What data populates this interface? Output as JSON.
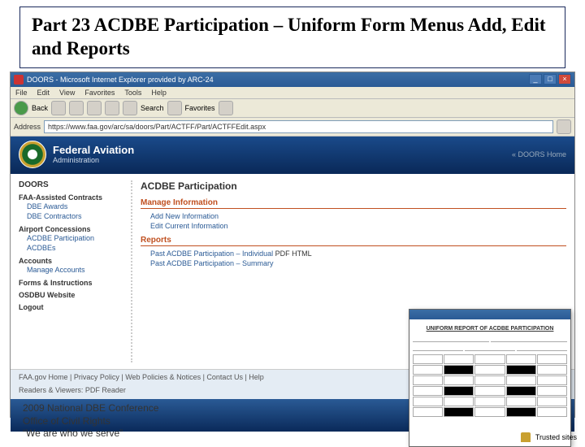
{
  "slide": {
    "title": "Part 23 ACDBE Participation – Uniform Form Menus Add, Edit and Reports",
    "footer_line1": "2009 National DBE Conference",
    "footer_line2": "Office of Civil Rights",
    "footer_motto": "“We are who we serve”"
  },
  "browser": {
    "window_title": "DOORS - Microsoft Internet Explorer provided by ARC-24",
    "menus": [
      "File",
      "Edit",
      "View",
      "Favorites",
      "Tools",
      "Help"
    ],
    "toolbar": {
      "back": "Back",
      "search": "Search",
      "favorites": "Favorites"
    },
    "address_label": "Address",
    "address_value": "https://www.faa.gov/arc/sa/doors/Part/ACTFF/Part/ACTFFEdit.aspx",
    "status_trusted": "Trusted sites"
  },
  "faa": {
    "title": "Federal Aviation",
    "subtitle": "Administration",
    "home_link": "« DOORS Home"
  },
  "sidebar": {
    "heading": "DOORS",
    "groups": [
      {
        "label": "FAA-Assisted Contracts",
        "items": [
          "DBE Awards",
          "DBE Contractors"
        ]
      },
      {
        "label": "Airport Concessions",
        "items": [
          "ACDBE Participation",
          "ACDBEs"
        ]
      },
      {
        "label": "Accounts",
        "items": [
          "Manage Accounts"
        ]
      },
      {
        "label": "Forms & Instructions",
        "items": []
      },
      {
        "label": "OSDBU Website",
        "items": []
      },
      {
        "label": "Logout",
        "items": []
      }
    ]
  },
  "main": {
    "heading": "ACDBE Participation",
    "section_manage": "Manage Information",
    "manage_items": [
      "Add New Information",
      "Edit Current Information"
    ],
    "section_reports": "Reports",
    "report_items": [
      {
        "label": "Past ACDBE Participation – Individual",
        "formats": "PDF HTML"
      },
      {
        "label": "Past ACDBE Participation – Summary",
        "formats": ""
      }
    ]
  },
  "footer_links": "FAA.gov Home | Privacy Policy | Web Policies & Notices | Contact Us | Help",
  "footer_readers": "Readers & Viewers: PDF Reader",
  "overlay": {
    "report_title": "UNIFORM REPORT OF ACDBE PARTICIPATION"
  },
  "colors": {
    "title_border": "#1a2a5c",
    "faa_grad_top": "#1a4a8a",
    "faa_grad_bot": "#0a2a5a",
    "section_header": "#c05020",
    "link": "#2a5a95"
  }
}
